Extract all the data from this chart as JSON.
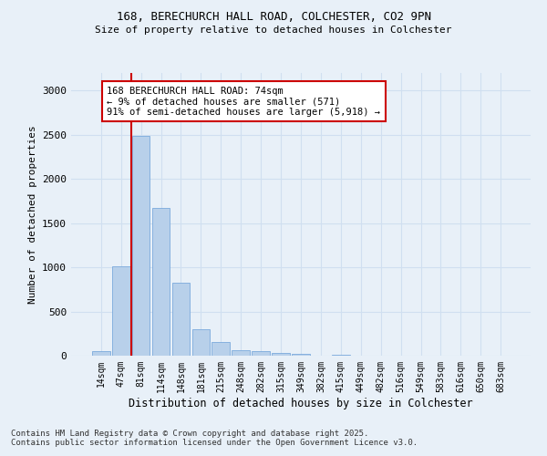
{
  "title1": "168, BERECHURCH HALL ROAD, COLCHESTER, CO2 9PN",
  "title2": "Size of property relative to detached houses in Colchester",
  "xlabel": "Distribution of detached houses by size in Colchester",
  "ylabel": "Number of detached properties",
  "categories": [
    "14sqm",
    "47sqm",
    "81sqm",
    "114sqm",
    "148sqm",
    "181sqm",
    "215sqm",
    "248sqm",
    "282sqm",
    "315sqm",
    "349sqm",
    "382sqm",
    "415sqm",
    "449sqm",
    "482sqm",
    "516sqm",
    "549sqm",
    "583sqm",
    "616sqm",
    "650sqm",
    "683sqm"
  ],
  "values": [
    50,
    1010,
    2490,
    1670,
    830,
    300,
    150,
    60,
    55,
    35,
    20,
    0,
    15,
    0,
    0,
    0,
    0,
    0,
    0,
    0,
    0
  ],
  "bar_color": "#b8d0ea",
  "bar_edge_color": "#6a9fd8",
  "grid_color": "#d0dff0",
  "background_color": "#e8f0f8",
  "vline_x": 1.5,
  "vline_color": "#cc0000",
  "annotation_text": "168 BERECHURCH HALL ROAD: 74sqm\n← 9% of detached houses are smaller (571)\n91% of semi-detached houses are larger (5,918) →",
  "annotation_box_color": "#ffffff",
  "annotation_box_edge": "#cc0000",
  "footnote": "Contains HM Land Registry data © Crown copyright and database right 2025.\nContains public sector information licensed under the Open Government Licence v3.0.",
  "ylim": [
    0,
    3200
  ],
  "yticks": [
    0,
    500,
    1000,
    1500,
    2000,
    2500,
    3000
  ]
}
